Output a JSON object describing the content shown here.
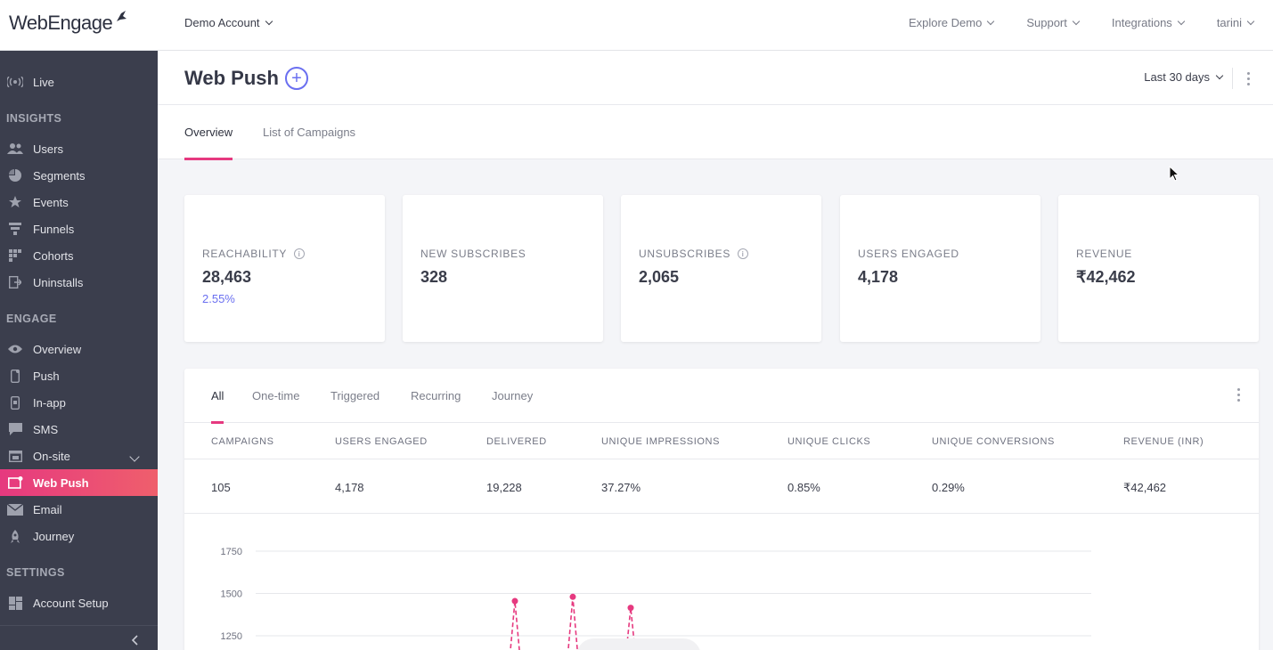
{
  "brand": {
    "logo_text": "WebEngage"
  },
  "topbar": {
    "account": "Demo Account",
    "nav": [
      "Explore Demo",
      "Support",
      "Integrations",
      "tarini"
    ]
  },
  "sidebar": {
    "live": "Live",
    "sections": {
      "insights": "INSIGHTS",
      "engage": "ENGAGE",
      "settings": "SETTINGS"
    },
    "insights_items": [
      "Users",
      "Segments",
      "Events",
      "Funnels",
      "Cohorts",
      "Uninstalls"
    ],
    "engage_items": [
      "Overview",
      "Push",
      "In-app",
      "SMS",
      "On-site",
      "Web Push",
      "Email",
      "Journey"
    ],
    "settings_items": [
      "Account Setup"
    ],
    "active": "Web Push"
  },
  "page": {
    "title": "Web Push",
    "date_range": "Last 30 days",
    "tabs": [
      "Overview",
      "List of Campaigns"
    ]
  },
  "stats": [
    {
      "label": "REACHABILITY",
      "value": "28,463",
      "sub": "2.55%",
      "info": true
    },
    {
      "label": "NEW SUBSCRIBES",
      "value": "328",
      "sub": "",
      "info": false
    },
    {
      "label": "UNSUBSCRIBES",
      "value": "2,065",
      "sub": "",
      "info": true
    },
    {
      "label": "USERS ENGAGED",
      "value": "4,178",
      "sub": "",
      "info": false
    },
    {
      "label": "REVENUE",
      "value": "₹42,462",
      "sub": "",
      "info": false
    }
  ],
  "campaigns": {
    "tabs": [
      "All",
      "One-time",
      "Triggered",
      "Recurring",
      "Journey"
    ],
    "columns": [
      "CAMPAIGNS",
      "USERS ENGAGED",
      "DELIVERED",
      "UNIQUE IMPRESSIONS",
      "UNIQUE CLICKS",
      "UNIQUE CONVERSIONS",
      "REVENUE (INR)"
    ],
    "row": [
      "105",
      "4,178",
      "19,228",
      "37.27%",
      "0.85%",
      "0.29%",
      "₹42,462"
    ]
  },
  "colors": {
    "accent": "#e6397f",
    "link": "#6a6ff0",
    "sidebar": "#3b3e4d"
  },
  "chart_data": {
    "type": "line",
    "y_ticks": [
      "1750",
      "1500",
      "1250"
    ],
    "ylim": [
      1250,
      1750
    ],
    "peaks": [
      1455,
      1480,
      1415
    ]
  }
}
